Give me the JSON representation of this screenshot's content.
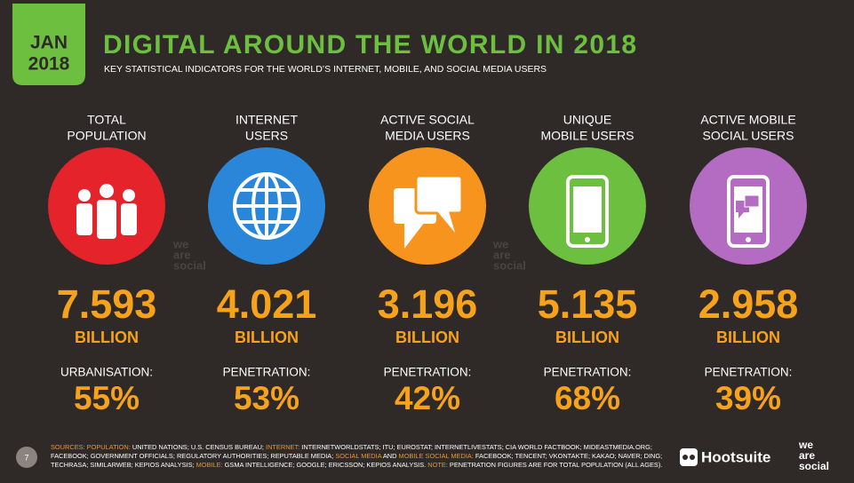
{
  "header": {
    "badge": [
      "JAN",
      "2018"
    ],
    "title": "DIGITAL AROUND THE WORLD IN 2018",
    "subtitle": "KEY STATISTICAL INDICATORS FOR THE WORLD’S INTERNET, MOBILE, AND SOCIAL MEDIA USERS"
  },
  "stats": [
    {
      "label": [
        "TOTAL",
        "POPULATION"
      ],
      "number": "7.593",
      "unit": "BILLION",
      "sub_label": "URBANISATION:",
      "sub_value": "55%",
      "color": "#e4232b"
    },
    {
      "label": [
        "INTERNET",
        "USERS"
      ],
      "number": "4.021",
      "unit": "BILLION",
      "sub_label": "PENETRATION:",
      "sub_value": "53%",
      "color": "#2a86d9"
    },
    {
      "label": [
        "ACTIVE SOCIAL",
        "MEDIA USERS"
      ],
      "number": "3.196",
      "unit": "BILLION",
      "sub_label": "PENETRATION:",
      "sub_value": "42%",
      "color": "#f7941d"
    },
    {
      "label": [
        "UNIQUE",
        "MOBILE USERS"
      ],
      "number": "5.135",
      "unit": "BILLION",
      "sub_label": "PENETRATION:",
      "sub_value": "68%",
      "color": "#6cbf3f"
    },
    {
      "label": [
        "ACTIVE MOBILE",
        "SOCIAL USERS"
      ],
      "number": "2.958",
      "unit": "BILLION",
      "sub_label": "PENETRATION:",
      "sub_value": "39%",
      "color": "#b46cc3"
    }
  ],
  "watermark": [
    "we",
    "are",
    "social"
  ],
  "footer": {
    "page": "7",
    "sources": [
      {
        "text": "SOURCES: POPULATION:",
        "color": "#f7941d"
      },
      {
        "text": " UNITED NATIONS; U.S. CENSUS BUREAU; ",
        "color": "#ffffff"
      },
      {
        "text": "INTERNET:",
        "color": "#f7941d"
      },
      {
        "text": " INTERNETWORLDSTATS; ITU; EUROSTAT; INTERNETLIVESTATS; CIA WORLD FACTBOOK; MIDEASTMEDIA.ORG; FACEBOOK; GOVERNMENT OFFICIALS; REGULATORY AUTHORITIES; REPUTABLE MEDIA; ",
        "color": "#ffffff"
      },
      {
        "text": "SOCIAL MEDIA",
        "color": "#f7941d"
      },
      {
        "text": " AND ",
        "color": "#ffffff"
      },
      {
        "text": "MOBILE SOCIAL MEDIA:",
        "color": "#f7941d"
      },
      {
        "text": " FACEBOOK; TENCENT; VKONTAKTE; KAKAO; NAVER; DING; TECHRASA; SIMILARWEB; KEPIOS ANALYSIS; ",
        "color": "#ffffff"
      },
      {
        "text": "MOBILE:",
        "color": "#f7941d"
      },
      {
        "text": " GSMA INTELLIGENCE; GOOGLE; ERICSSON; KEPIOS ANALYSIS. ",
        "color": "#ffffff"
      },
      {
        "text": "NOTE:",
        "color": "#f7941d"
      },
      {
        "text": " PENETRATION FIGURES ARE FOR TOTAL POPULATION (ALL AGES).",
        "color": "#ffffff"
      }
    ],
    "brands": [
      "Hootsuite",
      "we",
      "are",
      "social"
    ]
  }
}
